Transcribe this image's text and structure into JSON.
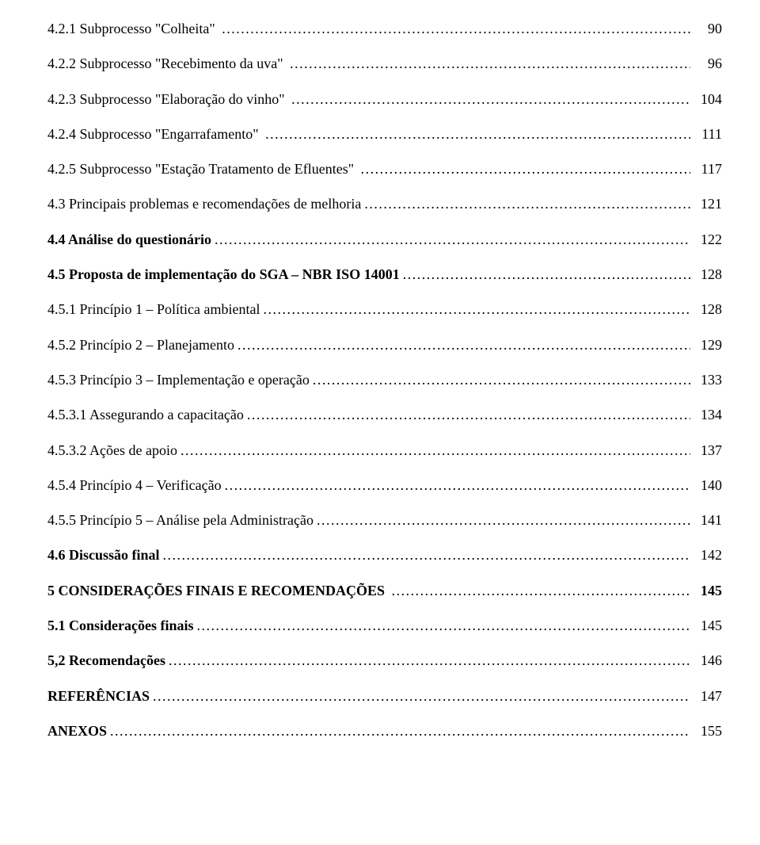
{
  "toc": [
    {
      "label": "4.2.1 Subprocesso \"Colheita\" ",
      "page": "90",
      "style": "plain"
    },
    {
      "label": "4.2.2 Subprocesso \"Recebimento da uva\" ",
      "page": "96",
      "style": "plain"
    },
    {
      "label": "4.2.3 Subprocesso \"Elaboração do vinho\" ",
      "page": "104",
      "style": "plain"
    },
    {
      "label": "4.2.4 Subprocesso \"Engarrafamento\" ",
      "page": "111",
      "style": "plain"
    },
    {
      "label": "4.2.5 Subprocesso \"Estação Tratamento de Efluentes\" ",
      "page": "117",
      "style": "plain"
    },
    {
      "label": "4.3 Principais problemas e recomendações de melhoria",
      "page": "121",
      "style": "plain"
    },
    {
      "label": "4.4 Análise do questionário",
      "page": "122",
      "style": "bold"
    },
    {
      "label": "4.5 Proposta de implementação do SGA – NBR ISO 14001",
      "page": "128",
      "style": "bold"
    },
    {
      "label": "4.5.1 Princípio 1 – Política ambiental",
      "page": "128",
      "style": "plain"
    },
    {
      "label": "4.5.2 Princípio 2 – Planejamento",
      "page": "129",
      "style": "plain"
    },
    {
      "label": "4.5.3 Princípio 3 – Implementação e operação",
      "page": "133",
      "style": "plain"
    },
    {
      "label": "4.5.3.1 Assegurando a capacitação",
      "page": "134",
      "style": "plain"
    },
    {
      "label": "4.5.3.2 Ações de apoio",
      "page": "137",
      "style": "plain"
    },
    {
      "label": "4.5.4 Princípio 4 – Verificação",
      "page": "140",
      "style": "plain"
    },
    {
      "label": "4.5.5 Princípio 5 – Análise pela Administração",
      "page": "141",
      "style": "plain"
    },
    {
      "label": "4.6 Discussão final",
      "page": "142",
      "style": "bold"
    },
    {
      "label": "5 CONSIDERAÇÕES FINAIS E RECOMENDAÇÕES ",
      "page": "145",
      "style": "allbold"
    },
    {
      "label": "5.1 Considerações finais",
      "page": "145",
      "style": "bold"
    },
    {
      "label": "5,2 Recomendações",
      "page": "146",
      "style": "bold"
    },
    {
      "label": "REFERÊNCIAS",
      "page": "147",
      "style": "bold"
    },
    {
      "label": "ANEXOS",
      "page": "155",
      "style": "bold"
    }
  ]
}
